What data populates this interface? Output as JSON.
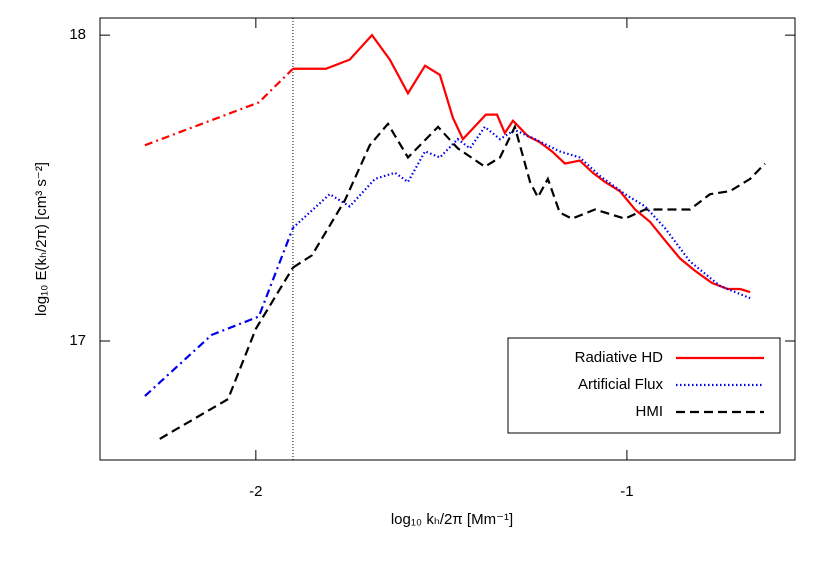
{
  "chart_data": {
    "type": "line",
    "xlabel": "log₁₀ kₕ/2π [Mm⁻¹]",
    "ylabel": "log₁₀ E(kₕ/2π) [cm³ s⁻²]",
    "xlim": [
      -2.42,
      -0.547
    ],
    "ylim": [
      16.611,
      18.056
    ],
    "xticks": [
      -2,
      -1
    ],
    "yticks": [
      17,
      18
    ],
    "vline": -1.9,
    "legend": "lower right",
    "series": [
      {
        "name": "Radiative HD",
        "color": "#ff0000",
        "style": "solid",
        "pre_style": "dashdot",
        "x": [
          -2.299,
          -1.992,
          -1.9,
          -1.811,
          -1.747,
          -1.687,
          -1.639,
          -1.59,
          -1.544,
          -1.504,
          -1.469,
          -1.442,
          -1.38,
          -1.35,
          -1.329,
          -1.307,
          -1.267,
          -1.235,
          -1.202,
          -1.167,
          -1.127,
          -1.092,
          -1.059,
          -1.019,
          -0.978,
          -0.938,
          -0.898,
          -0.857,
          -0.817,
          -0.771,
          -0.728,
          -0.695,
          -0.668
        ],
        "values": [
          17.64,
          17.78,
          17.89,
          17.89,
          17.92,
          18.0,
          17.92,
          17.81,
          17.9,
          17.87,
          17.73,
          17.66,
          17.74,
          17.74,
          17.68,
          17.72,
          17.67,
          17.65,
          17.62,
          17.58,
          17.59,
          17.55,
          17.52,
          17.49,
          17.43,
          17.39,
          17.33,
          17.27,
          17.23,
          17.19,
          17.17,
          17.17,
          17.16
        ]
      },
      {
        "name": "Artificial Flux",
        "color": "#0000ee",
        "style": "dotted",
        "pre_style": "dashdot",
        "x": [
          -2.299,
          -2.119,
          -1.992,
          -1.9,
          -1.801,
          -1.747,
          -1.679,
          -1.625,
          -1.59,
          -1.544,
          -1.504,
          -1.456,
          -1.423,
          -1.383,
          -1.342,
          -1.302,
          -1.248,
          -1.181,
          -1.127,
          -1.073,
          -1.005,
          -0.951,
          -0.898,
          -0.83,
          -0.749,
          -0.668
        ],
        "values": [
          16.82,
          17.02,
          17.08,
          17.37,
          17.48,
          17.44,
          17.53,
          17.55,
          17.52,
          17.62,
          17.6,
          17.66,
          17.63,
          17.7,
          17.66,
          17.69,
          17.66,
          17.62,
          17.6,
          17.54,
          17.48,
          17.44,
          17.37,
          17.26,
          17.18,
          17.14
        ]
      },
      {
        "name": "HMI",
        "color": "#000000",
        "style": "dashed",
        "pre_style": "dashed",
        "x": [
          -2.259,
          -2.075,
          -2.0,
          -1.9,
          -1.849,
          -1.76,
          -1.693,
          -1.644,
          -1.59,
          -1.509,
          -1.456,
          -1.383,
          -1.342,
          -1.302,
          -1.261,
          -1.24,
          -1.213,
          -1.181,
          -1.148,
          -1.086,
          -1.005,
          -0.951,
          -0.898,
          -0.83,
          -0.776,
          -0.722,
          -0.668,
          -0.628
        ],
        "values": [
          16.68,
          16.81,
          17.04,
          17.24,
          17.28,
          17.46,
          17.64,
          17.71,
          17.6,
          17.7,
          17.63,
          17.57,
          17.6,
          17.7,
          17.52,
          17.47,
          17.53,
          17.42,
          17.4,
          17.43,
          17.4,
          17.43,
          17.43,
          17.43,
          17.48,
          17.49,
          17.53,
          17.58
        ]
      }
    ]
  }
}
